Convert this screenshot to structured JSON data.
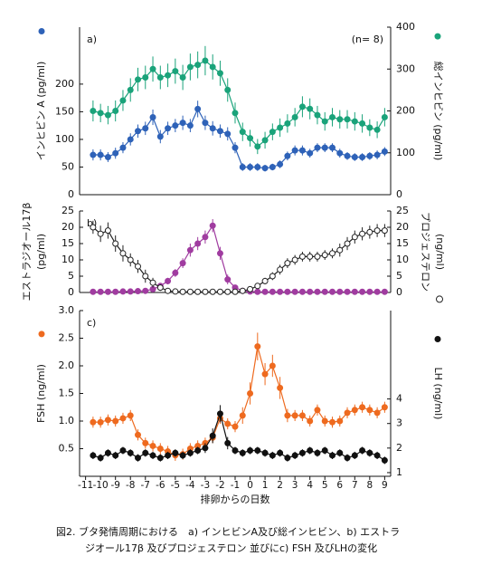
{
  "chart_data": [
    {
      "type": "line",
      "label": "a)",
      "note": "(n= 8)",
      "ylabel": [
        "インヒビン A (pg/ml)"
      ],
      "y2label": [
        "総インヒビン (pg/ml)"
      ],
      "xlim": [
        -11.4,
        9.4
      ],
      "ylim": [
        0,
        303
      ],
      "yticks": [
        0,
        50,
        100,
        150,
        200
      ],
      "y2lim": [
        0,
        400
      ],
      "y2ticks": [
        0,
        100,
        200,
        300,
        400
      ],
      "x": [
        -10.5,
        -10,
        -9.5,
        -9,
        -8.5,
        -8,
        -7.5,
        -7,
        -6.5,
        -6,
        -5.5,
        -5,
        -4.5,
        -4,
        -3.5,
        -3,
        -2.5,
        -2,
        -1.5,
        -1,
        -0.5,
        0,
        0.5,
        1,
        1.5,
        2,
        2.5,
        3,
        3.5,
        4,
        4.5,
        5,
        5.5,
        6,
        6.5,
        7,
        7.5,
        8,
        8.5,
        9
      ],
      "series": [
        {
          "color": "#2e62b8",
          "marker": "filled",
          "label_side": "y",
          "values": [
            72,
            72,
            68,
            75,
            85,
            100,
            115,
            120,
            140,
            105,
            120,
            125,
            130,
            125,
            155,
            130,
            120,
            115,
            110,
            85,
            50,
            50,
            50,
            48,
            50,
            55,
            70,
            80,
            80,
            75,
            85,
            85,
            85,
            75,
            70,
            68,
            68,
            70,
            72,
            78
          ],
          "errors": [
            10,
            10,
            9,
            10,
            10,
            11,
            12,
            12,
            14,
            12,
            12,
            12,
            13,
            12,
            15,
            13,
            13,
            12,
            12,
            10,
            7,
            7,
            7,
            6,
            6,
            7,
            8,
            9,
            9,
            8,
            8,
            8,
            8,
            8,
            7,
            7,
            7,
            7,
            8,
            8
          ]
        },
        {
          "color": "#1aa37a",
          "marker": "filled",
          "axis": "y2",
          "label_side": "y2",
          "values": [
            200,
            195,
            190,
            200,
            225,
            250,
            275,
            280,
            300,
            280,
            285,
            295,
            280,
            305,
            310,
            320,
            305,
            290,
            250,
            195,
            150,
            135,
            115,
            130,
            150,
            160,
            170,
            185,
            210,
            205,
            190,
            175,
            185,
            180,
            180,
            175,
            170,
            160,
            155,
            185
          ],
          "errors": [
            25,
            22,
            22,
            25,
            25,
            28,
            28,
            28,
            30,
            28,
            28,
            30,
            30,
            32,
            32,
            35,
            30,
            30,
            28,
            25,
            22,
            20,
            18,
            20,
            20,
            22,
            22,
            22,
            25,
            25,
            22,
            22,
            22,
            22,
            22,
            22,
            22,
            20,
            20,
            22
          ]
        }
      ]
    },
    {
      "type": "line",
      "label": "b)",
      "ylabel": [
        "エストラジオール17β",
        "(pg/ml)"
      ],
      "y2label": [
        "プロジェステロン",
        "(ng/ml)"
      ],
      "xlim": [
        -11.4,
        9.4
      ],
      "ylim": [
        0,
        25
      ],
      "yticks": [
        0,
        5,
        10,
        15,
        20,
        25
      ],
      "y2lim": [
        0,
        25
      ],
      "y2ticks": [
        0,
        5,
        10,
        15,
        20,
        25
      ],
      "x": [
        -10.5,
        -10,
        -9.5,
        -9,
        -8.5,
        -8,
        -7.5,
        -7,
        -6.5,
        -6,
        -5.5,
        -5,
        -4.5,
        -4,
        -3.5,
        -3,
        -2.5,
        -2,
        -1.5,
        -1,
        -0.5,
        0,
        0.5,
        1,
        1.5,
        2,
        2.5,
        3,
        3.5,
        4,
        4.5,
        5,
        5.5,
        6,
        6.5,
        7,
        7.5,
        8,
        8.5,
        9
      ],
      "series": [
        {
          "color": "#a03ca0",
          "marker": "filled",
          "values": [
            0.2,
            0.2,
            0.2,
            0.2,
            0.3,
            0.3,
            0.4,
            0.5,
            1,
            2,
            3.5,
            6,
            9,
            13,
            15,
            17,
            20.5,
            12,
            4,
            1.5,
            0.5,
            0.3,
            0.2,
            0.2,
            0.2,
            0.2,
            0.2,
            0.2,
            0.2,
            0.2,
            0.2,
            0.2,
            0.2,
            0.2,
            0.2,
            0.2,
            0.2,
            0.2,
            0.2,
            0.2
          ],
          "errors": [
            0.2,
            0.2,
            0.2,
            0.2,
            0.2,
            0.2,
            0.2,
            0.2,
            0.5,
            0.8,
            1,
            1.2,
            1.5,
            2,
            2,
            2,
            2,
            2,
            1.5,
            0.8,
            0.3,
            0.2,
            0.2,
            0.2,
            0.2,
            0.2,
            0.2,
            0.2,
            0.2,
            0.2,
            0.2,
            0.2,
            0.2,
            0.2,
            0.2,
            0.2,
            0.2,
            0.2,
            0.2,
            0.2
          ]
        },
        {
          "color": "#222222",
          "marker": "open",
          "axis": "y2",
          "label_side": "y2",
          "values": [
            20,
            18,
            19,
            15,
            12,
            10,
            8,
            5,
            3,
            1.5,
            0.5,
            0.3,
            0.2,
            0.2,
            0.2,
            0.2,
            0.2,
            0.2,
            0.2,
            0.2,
            0.5,
            1,
            2,
            3.5,
            5,
            7,
            9,
            10,
            11,
            11,
            11,
            11.5,
            12,
            13,
            15,
            17,
            18,
            18.5,
            19,
            19
          ],
          "errors": [
            2,
            2.5,
            2.5,
            2.5,
            2.5,
            2,
            2,
            2,
            1.5,
            1,
            0.4,
            0.3,
            0.2,
            0.2,
            0.2,
            0.2,
            0.2,
            0.2,
            0.2,
            0.2,
            0.4,
            0.6,
            0.8,
            1,
            1.2,
            1.5,
            1.5,
            1.5,
            1.5,
            1.5,
            1.5,
            1.5,
            1.5,
            2,
            2,
            2,
            2,
            2,
            2,
            2
          ]
        }
      ]
    },
    {
      "type": "line",
      "label": "c)",
      "ylabel": [
        "FSH (ng/ml)"
      ],
      "y2label": [
        "LH (ng/ml)"
      ],
      "xlabel": "排卵からの日数",
      "xlim": [
        -11.4,
        9.4
      ],
      "xticks": [
        -11,
        -10,
        -9,
        -8,
        -7,
        -6,
        -5,
        -4,
        -3,
        -2,
        -1,
        0,
        1,
        2,
        3,
        4,
        5,
        6,
        7,
        8,
        9
      ],
      "ylim": [
        0,
        3
      ],
      "yticks": [
        0.5,
        {
          "value": 1,
          "label": "1.0"
        },
        1.5,
        {
          "value": 2,
          "label": "2.0"
        },
        2.5,
        {
          "value": 3,
          "label": "3.0"
        }
      ],
      "y2lim": [
        0.85,
        7.6
      ],
      "y2ticks": [
        1,
        2,
        3,
        4
      ],
      "x": [
        -10.5,
        -10,
        -9.5,
        -9,
        -8.5,
        -8,
        -7.5,
        -7,
        -6.5,
        -6,
        -5.5,
        -5,
        -4.5,
        -4,
        -3.5,
        -3,
        -2.5,
        -2,
        -1.5,
        -1,
        -0.5,
        0,
        0.5,
        1,
        1.5,
        2,
        2.5,
        3,
        3.5,
        4,
        4.5,
        5,
        5.5,
        6,
        6.5,
        7,
        7.5,
        8,
        8.5,
        9
      ],
      "series": [
        {
          "color": "#ee6a1f",
          "marker": "filled",
          "label_side": "y",
          "values": [
            0.98,
            0.98,
            1.02,
            1.0,
            1.05,
            1.1,
            0.75,
            0.6,
            0.55,
            0.5,
            0.45,
            0.38,
            0.4,
            0.5,
            0.55,
            0.6,
            0.7,
            1.05,
            0.95,
            0.9,
            1.1,
            1.5,
            2.35,
            1.85,
            2.0,
            1.6,
            1.1,
            1.1,
            1.1,
            1.0,
            1.2,
            1.0,
            0.98,
            1.0,
            1.15,
            1.2,
            1.25,
            1.2,
            1.15,
            1.25
          ],
          "errors": [
            0.1,
            0.1,
            0.1,
            0.1,
            0.1,
            0.1,
            0.1,
            0.1,
            0.1,
            0.1,
            0.1,
            0.1,
            0.1,
            0.1,
            0.1,
            0.1,
            0.1,
            0.1,
            0.1,
            0.1,
            0.15,
            0.2,
            0.25,
            0.2,
            0.2,
            0.2,
            0.12,
            0.1,
            0.1,
            0.1,
            0.1,
            0.1,
            0.1,
            0.1,
            0.1,
            0.1,
            0.1,
            0.1,
            0.1,
            0.1
          ]
        },
        {
          "color": "#111111",
          "marker": "filled",
          "axis": "y2",
          "label_side": "y2",
          "values": [
            1.7,
            1.6,
            1.8,
            1.7,
            1.9,
            1.8,
            1.6,
            1.8,
            1.7,
            1.6,
            1.7,
            1.8,
            1.7,
            1.8,
            1.9,
            2.0,
            2.5,
            3.4,
            2.2,
            1.9,
            1.8,
            1.9,
            1.9,
            1.8,
            1.7,
            1.8,
            1.6,
            1.7,
            1.8,
            1.9,
            1.8,
            1.9,
            1.7,
            1.8,
            1.6,
            1.7,
            1.9,
            1.8,
            1.7,
            1.5
          ],
          "errors": [
            0.15,
            0.15,
            0.15,
            0.15,
            0.15,
            0.15,
            0.15,
            0.15,
            0.15,
            0.15,
            0.15,
            0.15,
            0.15,
            0.15,
            0.15,
            0.2,
            0.3,
            0.35,
            0.25,
            0.15,
            0.15,
            0.15,
            0.15,
            0.15,
            0.15,
            0.15,
            0.15,
            0.15,
            0.15,
            0.15,
            0.15,
            0.15,
            0.15,
            0.15,
            0.15,
            0.15,
            0.15,
            0.15,
            0.15,
            0.15
          ]
        }
      ]
    }
  ],
  "caption": [
    "図2. ブタ発情周期における　a) インヒビンA及び総インヒビン、b) エストラ",
    "ジオール17β 及びプロジェステロン 並びにc) FSH 及びLHの変化"
  ]
}
